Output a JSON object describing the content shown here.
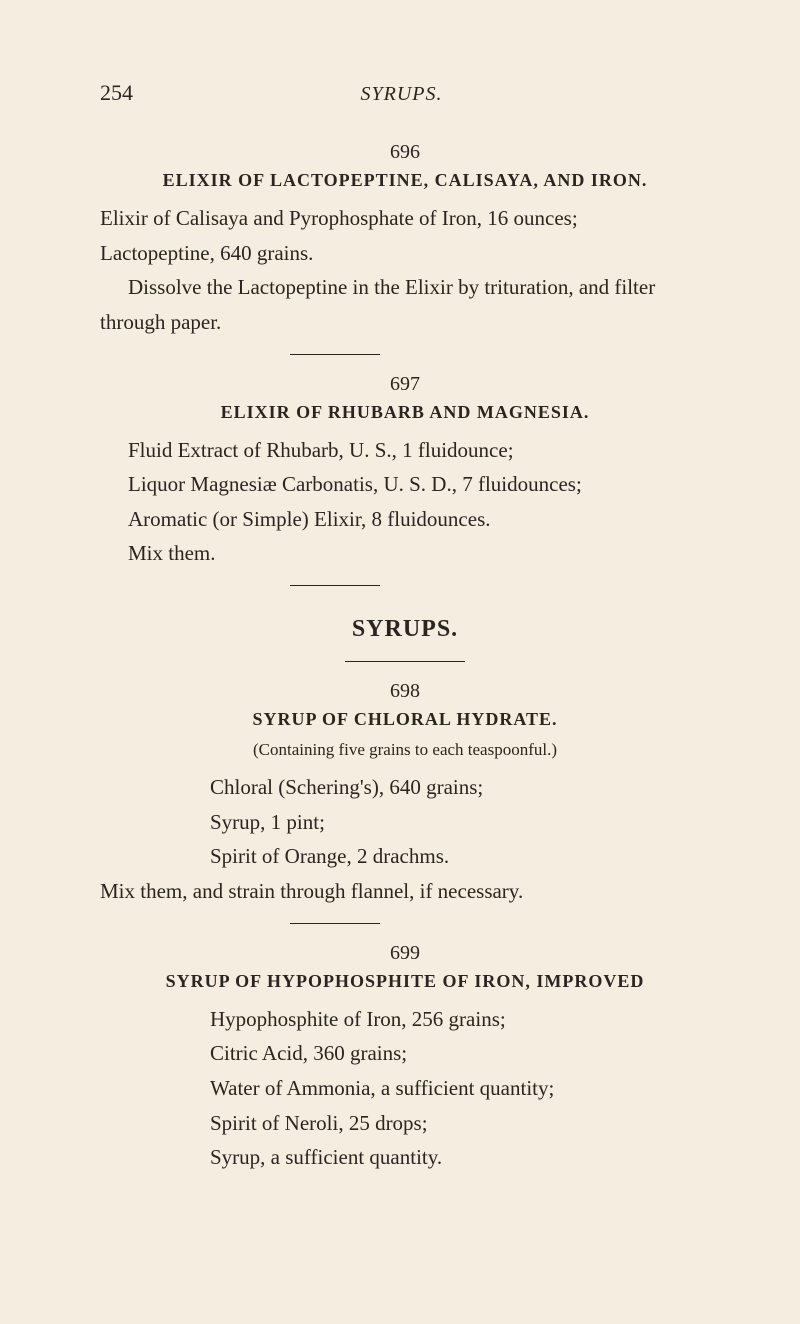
{
  "page": {
    "number": "254",
    "running_head": "SYRUPS."
  },
  "entries": [
    {
      "number": "696",
      "title": "ELIXIR OF LACTOPEPTINE, CALISAYA, AND IRON.",
      "lines": [
        "Elixir of Calisaya and Pyrophosphate of Iron, 16 ounces;",
        "Lactopeptine, 640 grains."
      ],
      "instructions": [
        "Dissolve the Lactopeptine in the Elixir by trituration, and filter through paper."
      ]
    },
    {
      "number": "697",
      "title": "ELIXIR OF RHUBARB AND MAGNESIA.",
      "lines": [
        "Fluid Extract of Rhubarb, U. S., 1 fluidounce;",
        "Liquor Magnesiæ Carbonatis, U. S. D., 7 fluidounces;",
        "Aromatic (or Simple) Elixir, 8 fluidounces.",
        "Mix them."
      ]
    }
  ],
  "section": {
    "heading": "SYRUPS."
  },
  "section_entries": [
    {
      "number": "698",
      "title": "SYRUP OF CHLORAL HYDRATE.",
      "subtitle": "(Containing five grains to each teaspoonful.)",
      "lines": [
        "Chloral (Schering's), 640 grains;",
        "Syrup, 1 pint;",
        "Spirit of Orange, 2 drachms."
      ],
      "instructions": "Mix them, and strain through flannel, if necessary."
    },
    {
      "number": "699",
      "title": "SYRUP OF HYPOPHOSPHITE OF IRON, IMPROVED",
      "lines": [
        "Hypophosphite of Iron, 256 grains;",
        "Citric Acid, 360 grains;",
        "Water of Ammonia, a sufficient quantity;",
        "Spirit of Neroli, 25 drops;",
        "Syrup, a sufficient quantity."
      ]
    }
  ]
}
